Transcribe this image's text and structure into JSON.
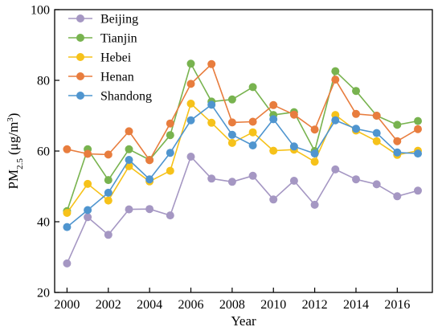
{
  "chart_data": {
    "type": "line",
    "title": "",
    "xlabel": "Year",
    "ylabel": {
      "main": "PM",
      "subscript": "2.5",
      "units_prefix": " (μg/m",
      "units_superscript": "3",
      "units_suffix": ")"
    },
    "xlim": [
      1999.4,
      2017.7
    ],
    "ylim": [
      20,
      100
    ],
    "x_ticks": [
      2000,
      2002,
      2004,
      2006,
      2008,
      2010,
      2012,
      2014,
      2016
    ],
    "y_ticks": [
      20,
      40,
      60,
      80,
      100
    ],
    "grid": false,
    "legend": "top-left",
    "x": [
      2000,
      2001,
      2002,
      2003,
      2004,
      2005,
      2006,
      2007,
      2008,
      2009,
      2010,
      2011,
      2012,
      2013,
      2014,
      2015,
      2016,
      2017
    ],
    "series": [
      {
        "name": "Beijing",
        "color": "#a597c3",
        "values": [
          28.2,
          41.3,
          36.3,
          43.5,
          43.6,
          41.8,
          58.4,
          52.2,
          51.3,
          53.0,
          46.3,
          51.6,
          44.8,
          54.8,
          52.0,
          50.6,
          47.2,
          48.8
        ]
      },
      {
        "name": "Tianjin",
        "color": "#78b34f",
        "values": [
          43.0,
          60.5,
          51.8,
          60.5,
          57.5,
          64.5,
          84.7,
          74.0,
          74.6,
          78.1,
          70.2,
          71.0,
          60.0,
          82.6,
          77.0,
          70.0,
          67.4,
          68.5
        ]
      },
      {
        "name": "Hebei",
        "color": "#f6c21a",
        "values": [
          42.5,
          50.7,
          46.0,
          55.7,
          51.4,
          54.4,
          73.4,
          68.0,
          62.3,
          65.3,
          60.1,
          60.4,
          57.0,
          70.2,
          65.8,
          62.8,
          58.9,
          60.1
        ]
      },
      {
        "name": "Henan",
        "color": "#e87d3e",
        "values": [
          60.5,
          59.2,
          59.0,
          65.6,
          57.4,
          67.8,
          79.0,
          84.6,
          68.1,
          68.3,
          73.0,
          70.3,
          66.1,
          80.2,
          70.5,
          70.0,
          62.8,
          66.2
        ]
      },
      {
        "name": "Shandong",
        "color": "#4f95cf",
        "values": [
          38.5,
          43.3,
          48.2,
          57.5,
          52.0,
          59.5,
          68.7,
          73.1,
          64.6,
          61.6,
          69.0,
          61.3,
          59.3,
          68.7,
          66.3,
          65.1,
          59.6,
          59.3
        ]
      }
    ]
  }
}
